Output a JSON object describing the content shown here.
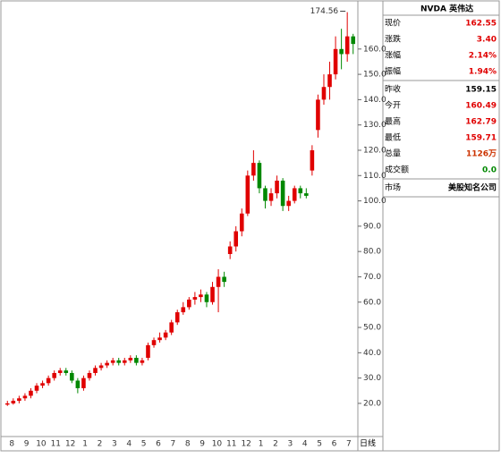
{
  "chart_data": {
    "type": "candlestick",
    "up_color": "#e00000",
    "down_color": "#008800",
    "annotation": "174.56",
    "x_period_label": "日线",
    "month_labels": [
      "8",
      "9",
      "10",
      "11",
      "12",
      "1",
      "2",
      "3",
      "4",
      "5",
      "6",
      "7",
      "8",
      "9",
      "10",
      "11",
      "12",
      "1",
      "2",
      "3",
      "4",
      "5",
      "6",
      "7"
    ],
    "open": [
      19.5,
      20,
      21,
      22,
      23,
      25,
      27,
      28,
      30,
      32,
      33,
      32,
      29,
      26,
      30,
      32,
      34,
      35,
      36,
      37,
      36,
      37,
      38,
      36,
      38,
      43,
      45,
      46,
      48,
      52,
      56,
      58,
      61,
      62,
      63,
      60,
      66,
      70,
      79,
      82,
      88,
      95,
      110,
      115,
      105,
      100,
      103,
      108,
      98,
      100,
      105,
      103,
      112,
      128,
      140,
      145,
      150,
      160,
      158,
      165
    ],
    "high": [
      21,
      22,
      23,
      24,
      26,
      28,
      29,
      31,
      33,
      34,
      34,
      33,
      30,
      31,
      33,
      35,
      36,
      37,
      38,
      38,
      38,
      39,
      39,
      38,
      44,
      46,
      48,
      49,
      53,
      57,
      60,
      62,
      64,
      65,
      64,
      68,
      73,
      72,
      84,
      90,
      97,
      112,
      120,
      116,
      106,
      105,
      110,
      109,
      102,
      106,
      106,
      105,
      122,
      142,
      150,
      155,
      165,
      168,
      174.56,
      166
    ],
    "low": [
      19,
      19.5,
      20,
      21,
      22,
      24,
      26,
      27,
      29,
      31,
      31,
      28,
      24,
      25,
      29,
      31,
      33,
      34,
      35,
      35,
      35,
      36,
      35,
      35,
      37,
      42,
      44,
      45,
      47,
      51,
      55,
      57,
      59,
      60,
      58,
      59,
      56,
      66,
      77,
      80,
      86,
      94,
      108,
      103,
      97,
      98,
      101,
      96,
      96,
      99,
      101,
      101,
      110,
      125,
      138,
      140,
      148,
      152,
      155,
      158
    ],
    "close": [
      20,
      21,
      22,
      23,
      25,
      27,
      28,
      30,
      32,
      33,
      32,
      29,
      26,
      30,
      32,
      34,
      35,
      36,
      37,
      36,
      37,
      38,
      36,
      37,
      43,
      45,
      46,
      48,
      52,
      56,
      58,
      61,
      62,
      63,
      60,
      66,
      70,
      68,
      82,
      88,
      95,
      110,
      115,
      105,
      100,
      103,
      108,
      98,
      100,
      105,
      103,
      102,
      120,
      140,
      145,
      150,
      160,
      158,
      165,
      162
    ],
    "ylim": [
      6.9,
      177.6
    ],
    "yticks": [
      {
        "value": 20,
        "label": "20.0"
      },
      {
        "value": 30,
        "label": "30.0"
      },
      {
        "value": 40,
        "label": "40.0"
      },
      {
        "value": 50,
        "label": "50.0"
      },
      {
        "value": 60,
        "label": "60.0"
      },
      {
        "value": 70,
        "label": "70.0"
      },
      {
        "value": 80,
        "label": "80.0"
      },
      {
        "value": 90,
        "label": "90.0"
      },
      {
        "value": 100,
        "label": "100.0"
      },
      {
        "value": 110,
        "label": "110.0"
      },
      {
        "value": 120,
        "label": "120.0"
      },
      {
        "value": 130,
        "label": "130.0"
      },
      {
        "value": 140,
        "label": "140.0"
      },
      {
        "value": 150,
        "label": "150.0"
      },
      {
        "value": 160,
        "label": "160.0"
      }
    ]
  },
  "panel": {
    "title": "NVDA 英伟达",
    "groups": [
      [
        {
          "label": "现价",
          "value": "162.55",
          "color": "#e00000"
        },
        {
          "label": "涨跌",
          "value": "3.40",
          "color": "#e00000"
        },
        {
          "label": "涨幅",
          "value": "2.14%",
          "color": "#e00000"
        },
        {
          "label": "振幅",
          "value": "1.94%",
          "color": "#e00000"
        }
      ],
      [
        {
          "label": "昨收",
          "value": "159.15",
          "color": "#000000"
        },
        {
          "label": "今开",
          "value": "160.49",
          "color": "#e00000"
        },
        {
          "label": "最高",
          "value": "162.79",
          "color": "#e00000"
        },
        {
          "label": "最低",
          "value": "159.71",
          "color": "#e00000"
        },
        {
          "label": "总量",
          "value": "1126万",
          "color": "#cc3300"
        },
        {
          "label": "成交额",
          "value": "0.0",
          "color": "#008800"
        }
      ],
      [
        {
          "label": "市场",
          "value": "美股知名公司",
          "color": "#000000"
        }
      ]
    ]
  }
}
